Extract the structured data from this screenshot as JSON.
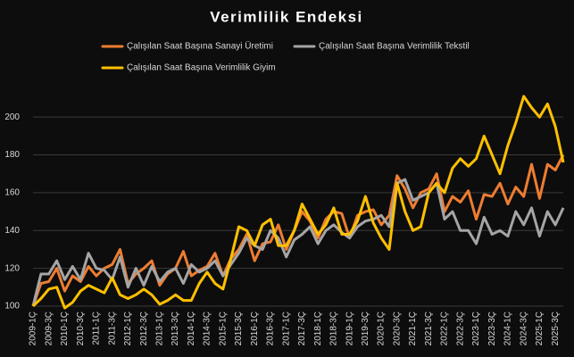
{
  "chart_data": {
    "type": "line",
    "title": "Verimlilik Endeksi",
    "categories": [
      "2009-1Ç",
      null,
      "2009-3Ç",
      null,
      "2010-1Ç",
      null,
      "2010-3Ç",
      null,
      "2011-1Ç",
      null,
      "2011-3Ç",
      null,
      "2012-1Ç",
      null,
      "2012-3Ç",
      null,
      "2013-1Ç",
      null,
      "2013-3Ç",
      null,
      "2014-1Ç",
      null,
      "2014-3Ç",
      null,
      "2015-1Ç",
      null,
      "2015-3Ç",
      null,
      "2016-1Ç",
      null,
      "2016-3Ç",
      null,
      "2017-1Ç",
      null,
      "2017-3Ç",
      null,
      "2018-1Ç",
      null,
      "2018-3Ç",
      null,
      "2019-1Ç",
      null,
      "2019-3Ç",
      null,
      "2020-1Ç",
      null,
      "2020-3Ç",
      null,
      "2021-1Ç",
      null,
      "2021-3Ç",
      null,
      "2022-1Ç",
      null,
      "2022-3Ç",
      null,
      "2023-1Ç",
      null,
      "2023-3Ç",
      null,
      "2024-1Ç",
      null,
      "2024-3Ç",
      null,
      "2025-1Ç",
      null,
      "2025-3Ç",
      null
    ],
    "series": [
      {
        "name": "Çalışılan Saat Başına Sanayi Üretimi",
        "color": "#ed7d31",
        "values": [
          100,
          112,
          113,
          120,
          108,
          116,
          113,
          121,
          116,
          120,
          122,
          130,
          112,
          117,
          120,
          124,
          111,
          117,
          120,
          129,
          116,
          119,
          121,
          128,
          116,
          125,
          130,
          138,
          124,
          133,
          134,
          143,
          130,
          140,
          150,
          145,
          136,
          146,
          150,
          149,
          136,
          148,
          150,
          151,
          143,
          148,
          169,
          162,
          152,
          160,
          162,
          170,
          150,
          158,
          155,
          161,
          146,
          159,
          158,
          165,
          154,
          163,
          158,
          175,
          157,
          175,
          172,
          180
        ]
      },
      {
        "name": "Çalışılan Saat Başına Verimlilik Tekstil",
        "color": "#a5a5a5",
        "values": [
          100,
          117,
          117,
          124,
          114,
          121,
          114,
          128,
          120,
          119,
          114,
          126,
          110,
          120,
          111,
          121,
          113,
          118,
          120,
          112,
          122,
          118,
          120,
          124,
          116,
          122,
          128,
          136,
          132,
          130,
          140,
          136,
          126,
          135,
          138,
          142,
          133,
          140,
          143,
          139,
          136,
          142,
          145,
          146,
          148,
          142,
          165,
          167,
          156,
          158,
          160,
          165,
          146,
          150,
          140,
          140,
          133,
          147,
          138,
          140,
          137,
          150,
          143,
          152,
          137,
          150,
          143,
          152
        ]
      },
      {
        "name": "Çalışılan Saat Başına Verimlilik Giyim",
        "color": "#ffc000",
        "values": [
          100,
          104,
          109,
          110,
          99,
          102,
          108,
          111,
          109,
          107,
          115,
          106,
          104,
          106,
          109,
          106,
          101,
          103,
          106,
          103,
          103,
          112,
          118,
          112,
          109,
          125,
          142,
          140,
          132,
          143,
          146,
          132,
          132,
          140,
          154,
          146,
          138,
          143,
          152,
          138,
          138,
          145,
          158,
          144,
          136,
          130,
          165,
          150,
          140,
          142,
          160,
          165,
          160,
          173,
          178,
          174,
          178,
          190,
          180,
          170,
          185,
          197,
          211,
          205,
          200,
          207,
          195,
          176
        ]
      }
    ],
    "ylim": [
      100,
      210
    ],
    "yticks": [
      100,
      120,
      140,
      160,
      180,
      200
    ],
    "grid": true,
    "legend": "top"
  }
}
